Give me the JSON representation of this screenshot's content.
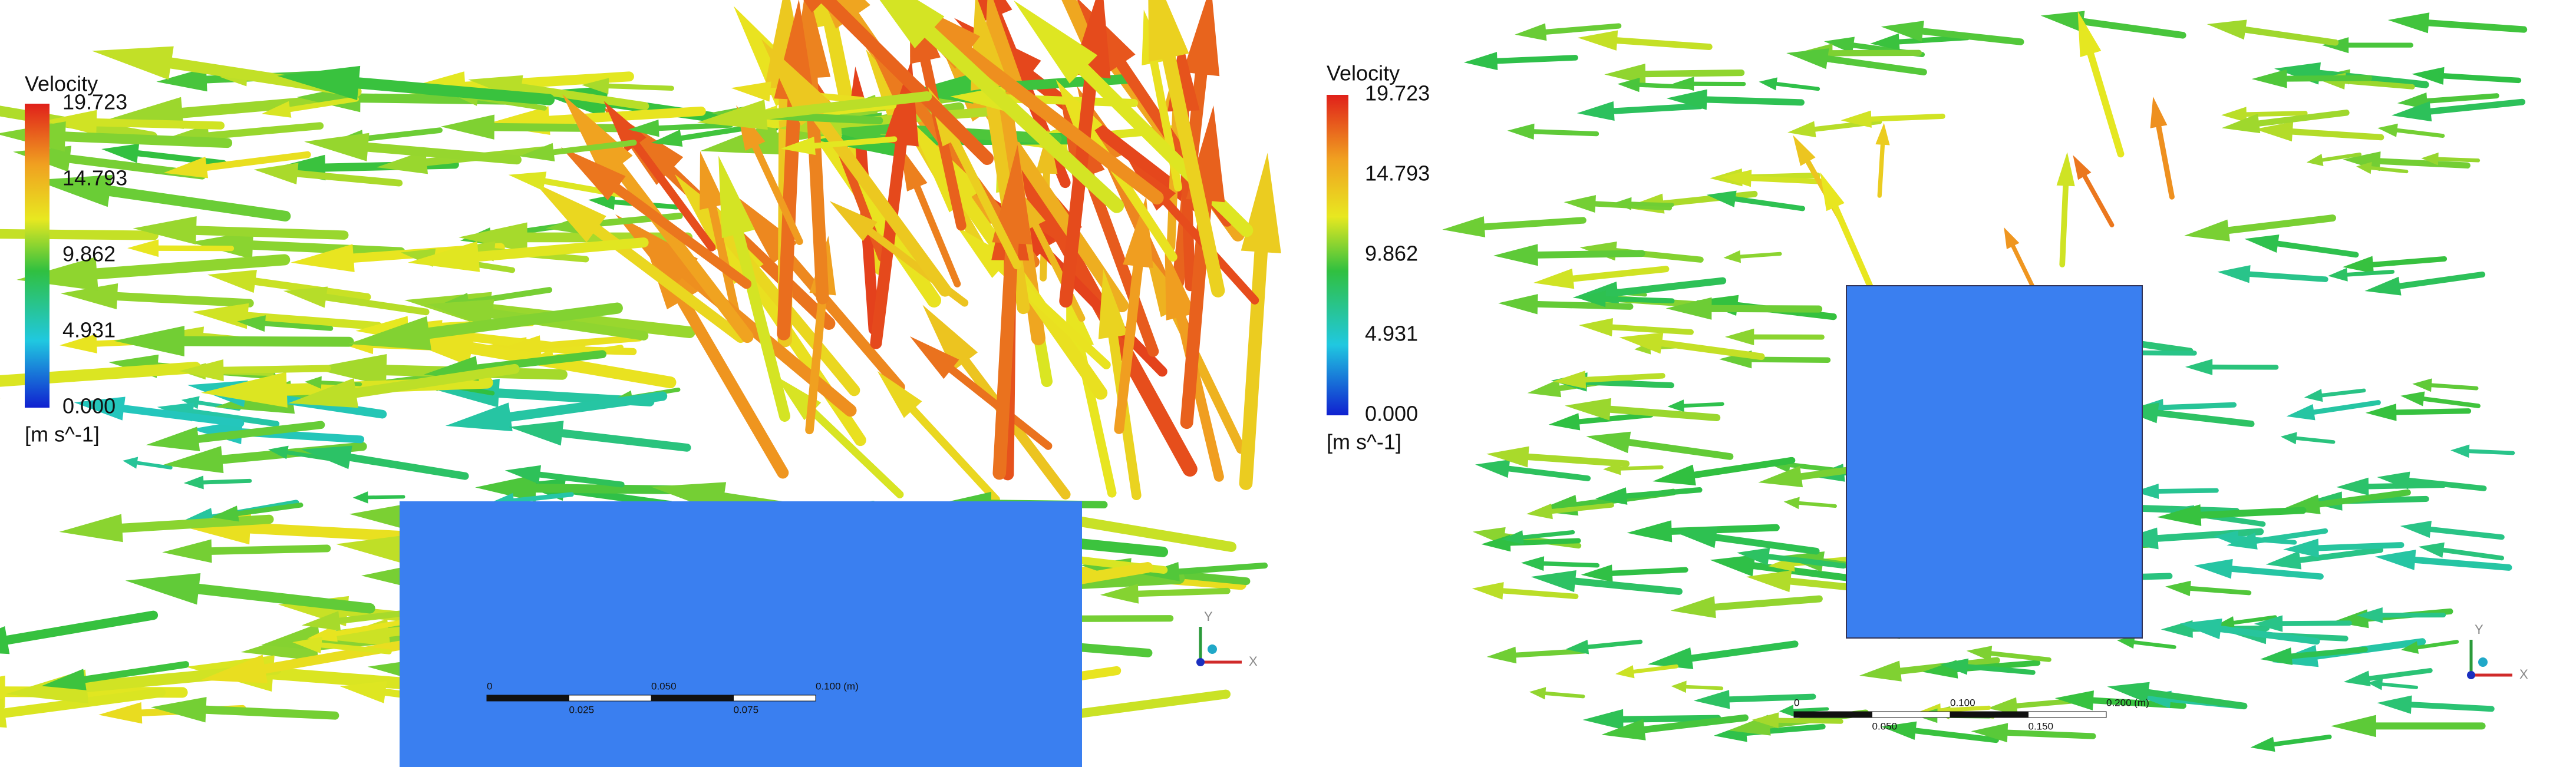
{
  "panels": [
    {
      "legend": {
        "title": "Velocity",
        "ticks": [
          "19.723",
          "14.793",
          "9.862",
          "4.931",
          "0.000"
        ],
        "unit": "[m s^-1]"
      },
      "scale_bar": {
        "top_labels": [
          "0",
          "0.050",
          "0.100 (m)"
        ],
        "bottom_labels": [
          "0.025",
          "0.075"
        ]
      },
      "axes": {
        "y": "Y",
        "x": "X"
      }
    },
    {
      "legend": {
        "title": "Velocity",
        "ticks": [
          "19.723",
          "14.793",
          "9.862",
          "4.931",
          "0.000"
        ],
        "unit": "[m s^-1]"
      },
      "scale_bar": {
        "top_labels": [
          "0",
          "0.100",
          "0.200 (m)"
        ],
        "bottom_labels": [
          "0.050",
          "0.150"
        ]
      },
      "axes": {
        "y": "Y",
        "x": "X"
      }
    }
  ]
}
